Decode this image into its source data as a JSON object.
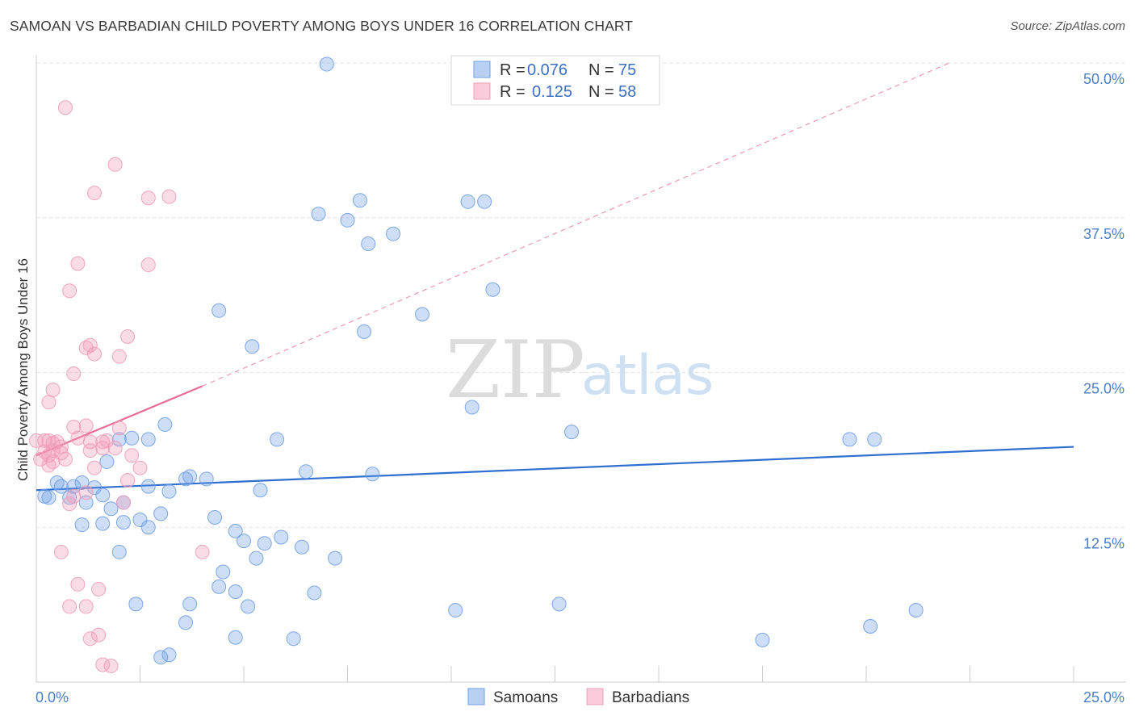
{
  "title": "SAMOAN VS BARBADIAN CHILD POVERTY AMONG BOYS UNDER 16 CORRELATION CHART",
  "source": "Source: ZipAtlas.com",
  "watermark": {
    "zip": "ZIP",
    "atlas": "atlas"
  },
  "legend": {
    "r_label": "R =",
    "n_label": "N =",
    "samoans": {
      "r": "0.076",
      "n": "75"
    },
    "barbadians": {
      "r": "0.125",
      "n": "58"
    }
  },
  "chart_data": {
    "type": "scatter",
    "title": "SAMOAN VS BARBADIAN CHILD POVERTY AMONG BOYS UNDER 16 CORRELATION CHART",
    "xlabel": "",
    "ylabel": "Child Poverty Among Boys Under 16",
    "xlim": [
      0,
      25
    ],
    "ylim": [
      0,
      50
    ],
    "x_tick_labels": [
      "0.0%",
      "25.0%"
    ],
    "y_ticks": [
      12.5,
      25.0,
      37.5,
      50.0
    ],
    "y_tick_labels": [
      "12.5%",
      "25.0%",
      "37.5%",
      "50.0%"
    ],
    "grid": true,
    "colors": {
      "samoans": "#6fa0e6",
      "barbadians": "#f09cb8",
      "samoans_line": "#2f6fcf",
      "barbadians_line": "#e96b95"
    },
    "series": [
      {
        "name": "Samoans",
        "points": [
          [
            7.0,
            49.9
          ],
          [
            2.3,
            19.7
          ],
          [
            3.1,
            20.8
          ],
          [
            2.0,
            19.6
          ],
          [
            1.7,
            17.8
          ],
          [
            1.1,
            16.1
          ],
          [
            1.4,
            15.7
          ],
          [
            0.5,
            16.1
          ],
          [
            0.9,
            15.8
          ],
          [
            1.8,
            14.0
          ],
          [
            2.1,
            14.5
          ],
          [
            2.7,
            15.8
          ],
          [
            3.2,
            15.4
          ],
          [
            3.0,
            13.6
          ],
          [
            2.5,
            13.1
          ],
          [
            2.7,
            12.5
          ],
          [
            2.0,
            10.5
          ],
          [
            4.8,
            12.2
          ],
          [
            5.0,
            11.4
          ],
          [
            5.5,
            11.2
          ],
          [
            5.9,
            11.7
          ],
          [
            6.4,
            10.9
          ],
          [
            7.2,
            10.0
          ],
          [
            5.3,
            10.0
          ],
          [
            4.5,
            8.9
          ],
          [
            4.4,
            7.7
          ],
          [
            6.5,
            17.0
          ],
          [
            4.1,
            16.4
          ],
          [
            5.4,
            15.5
          ],
          [
            4.3,
            13.3
          ],
          [
            3.7,
            16.6
          ],
          [
            3.6,
            16.4
          ],
          [
            1.6,
            15.1
          ],
          [
            2.1,
            12.9
          ],
          [
            1.6,
            12.8
          ],
          [
            1.1,
            12.7
          ],
          [
            0.6,
            15.8
          ],
          [
            0.8,
            14.9
          ],
          [
            0.3,
            14.9
          ],
          [
            1.2,
            14.5
          ],
          [
            0.2,
            15.0
          ],
          [
            4.4,
            30.0
          ],
          [
            5.2,
            27.1
          ],
          [
            6.8,
            37.8
          ],
          [
            7.5,
            37.3
          ],
          [
            7.8,
            38.9
          ],
          [
            8.0,
            35.4
          ],
          [
            8.6,
            36.2
          ],
          [
            9.3,
            29.7
          ],
          [
            10.4,
            38.8
          ],
          [
            10.8,
            38.8
          ],
          [
            11.0,
            31.7
          ],
          [
            7.9,
            28.3
          ],
          [
            10.5,
            22.2
          ],
          [
            12.9,
            20.2
          ],
          [
            19.6,
            19.6
          ],
          [
            20.2,
            19.6
          ],
          [
            5.8,
            19.6
          ],
          [
            2.7,
            19.6
          ],
          [
            8.1,
            16.8
          ],
          [
            3.7,
            6.3
          ],
          [
            3.6,
            4.8
          ],
          [
            2.4,
            6.3
          ],
          [
            4.8,
            7.3
          ],
          [
            5.1,
            6.1
          ],
          [
            6.7,
            7.2
          ],
          [
            10.1,
            5.8
          ],
          [
            12.6,
            6.3
          ],
          [
            6.2,
            3.5
          ],
          [
            4.8,
            3.6
          ],
          [
            3.0,
            2.0
          ],
          [
            3.2,
            2.2
          ],
          [
            17.5,
            3.4
          ],
          [
            20.1,
            4.5
          ],
          [
            21.2,
            5.8
          ]
        ],
        "trend": {
          "from": [
            0,
            15.5
          ],
          "to": [
            25,
            19.0
          ]
        }
      },
      {
        "name": "Barbadians",
        "points": [
          [
            0.7,
            46.4
          ],
          [
            1.9,
            41.8
          ],
          [
            1.4,
            39.5
          ],
          [
            2.7,
            39.1
          ],
          [
            3.2,
            39.2
          ],
          [
            1.0,
            33.8
          ],
          [
            2.7,
            33.7
          ],
          [
            0.8,
            31.6
          ],
          [
            1.3,
            27.2
          ],
          [
            1.2,
            27.0
          ],
          [
            2.2,
            27.9
          ],
          [
            1.4,
            26.5
          ],
          [
            2.0,
            26.3
          ],
          [
            0.9,
            24.9
          ],
          [
            0.4,
            23.6
          ],
          [
            0.3,
            22.6
          ],
          [
            0.9,
            20.6
          ],
          [
            1.2,
            20.7
          ],
          [
            2.0,
            20.5
          ],
          [
            0.3,
            19.5
          ],
          [
            0.4,
            19.3
          ],
          [
            0.5,
            19.4
          ],
          [
            1.0,
            19.7
          ],
          [
            1.6,
            19.4
          ],
          [
            0.6,
            18.5
          ],
          [
            1.3,
            18.7
          ],
          [
            0.7,
            18.0
          ],
          [
            0.3,
            18.3
          ],
          [
            0.2,
            19.5
          ],
          [
            0.0,
            19.5
          ],
          [
            0.1,
            18.0
          ],
          [
            0.4,
            17.8
          ],
          [
            0.3,
            17.5
          ],
          [
            1.4,
            17.3
          ],
          [
            2.5,
            17.3
          ],
          [
            1.3,
            19.4
          ],
          [
            1.6,
            18.9
          ],
          [
            2.2,
            16.3
          ],
          [
            2.3,
            18.3
          ],
          [
            0.9,
            15.0
          ],
          [
            1.2,
            15.3
          ],
          [
            2.1,
            14.5
          ],
          [
            0.8,
            14.4
          ],
          [
            0.6,
            10.5
          ],
          [
            4.0,
            10.5
          ],
          [
            1.0,
            7.9
          ],
          [
            1.5,
            7.5
          ],
          [
            0.8,
            6.1
          ],
          [
            1.2,
            6.1
          ],
          [
            1.5,
            3.8
          ],
          [
            1.3,
            3.5
          ],
          [
            1.6,
            1.4
          ],
          [
            1.8,
            1.3
          ],
          [
            0.2,
            18.6
          ],
          [
            1.9,
            18.9
          ],
          [
            0.6,
            19.0
          ],
          [
            0.4,
            18.7
          ],
          [
            1.7,
            19.5
          ]
        ],
        "trend": {
          "from": [
            0,
            18.3
          ],
          "to": [
            4.0,
            23.9
          ]
        },
        "trend_extension": {
          "from": [
            4.0,
            23.9
          ],
          "to": [
            22.0,
            50.0
          ]
        }
      }
    ]
  },
  "bottom_legend": {
    "samoans": "Samoans",
    "barbadians": "Barbadians"
  }
}
